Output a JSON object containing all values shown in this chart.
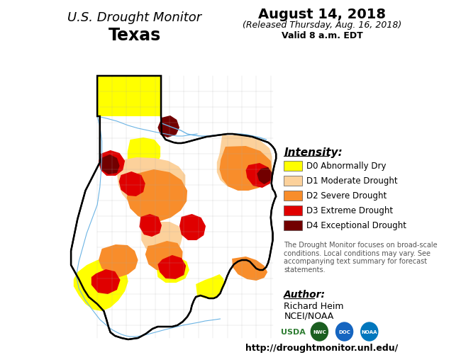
{
  "title_line1": "U.S. Drought Monitor",
  "title_line2": "Texas",
  "date_line1": "August 14, 2018",
  "date_line2": "(Released Thursday, Aug. 16, 2018)",
  "date_line3": "Valid 8 a.m. EDT",
  "intensity_label": "Intensity:",
  "legend_items": [
    {
      "color": "#FFFF00",
      "label": "D0 Abnormally Dry"
    },
    {
      "color": "#FCD19B",
      "label": "D1 Moderate Drought"
    },
    {
      "color": "#F88D2B",
      "label": "D2 Severe Drought"
    },
    {
      "color": "#E00000",
      "label": "D3 Extreme Drought"
    },
    {
      "color": "#720000",
      "label": "D4 Exceptional Drought"
    }
  ],
  "disclaimer": "The Drought Monitor focuses on broad-scale\nconditions. Local conditions may vary. See\naccompanying text summary for forecast\nstatements.",
  "author_label": "Author:",
  "author_name": "Richard Heim",
  "author_org": "NCEI/NOAA",
  "url": "http://droughtmonitor.unl.edu/",
  "background_color": "#FFFFFF",
  "county_line_color": "#AAAAAA",
  "river_color": "#6CB4E4"
}
